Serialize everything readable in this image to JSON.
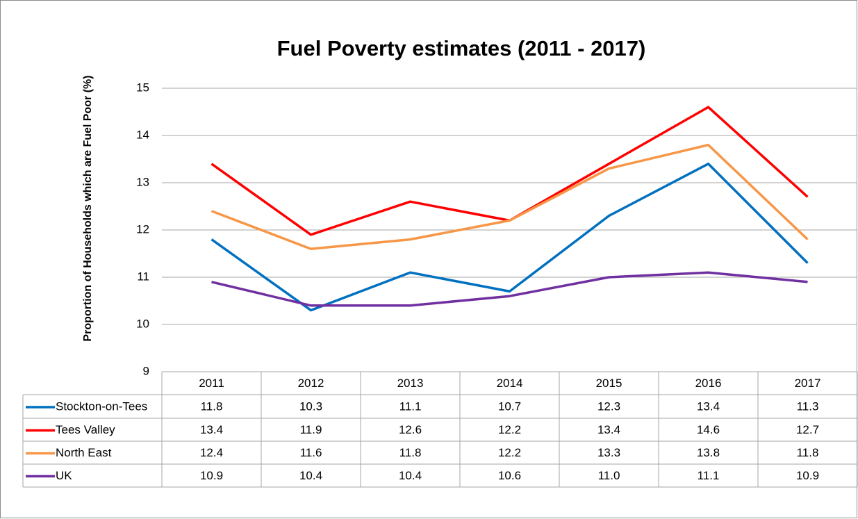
{
  "chart_data": {
    "type": "line",
    "title": "Fuel Poverty estimates (2011 - 2017)",
    "y_label": "Proportion of Households which are Fuel Poor (%)",
    "categories": [
      "2011",
      "2012",
      "2013",
      "2014",
      "2015",
      "2016",
      "2017"
    ],
    "series": [
      {
        "name": "Stockton-on-Tees",
        "color": "#0070c0",
        "values": [
          11.8,
          10.3,
          11.1,
          10.7,
          12.3,
          13.4,
          11.3
        ]
      },
      {
        "name": "Tees Valley",
        "color": "#ff0000",
        "values": [
          13.4,
          11.9,
          12.6,
          12.2,
          13.4,
          14.6,
          12.7
        ]
      },
      {
        "name": "North East",
        "color": "#f79646",
        "values": [
          12.4,
          11.6,
          11.8,
          12.2,
          13.3,
          13.8,
          11.8
        ]
      },
      {
        "name": "UK",
        "color": "#7030a0",
        "values": [
          10.9,
          10.4,
          10.4,
          10.6,
          11.0,
          11.1,
          10.9
        ],
        "value_labels": [
          "10.9",
          "10.4",
          "10.4",
          "10.6",
          "11.0",
          "11.1",
          "10.9"
        ]
      }
    ],
    "ylim": [
      9,
      15
    ],
    "yticks": [
      9,
      10,
      11,
      12,
      13,
      14,
      15
    ],
    "grid": true
  }
}
